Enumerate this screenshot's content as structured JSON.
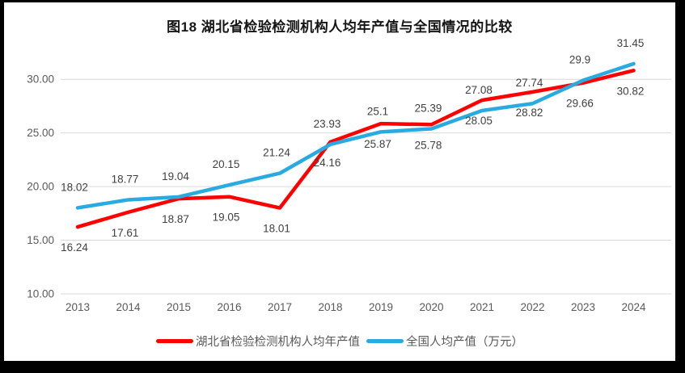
{
  "chart_data": {
    "type": "line",
    "title": "图18  湖北省检验检测机构人均年产值与全国情况的比较",
    "categories": [
      "2013",
      "2014",
      "2015",
      "2016",
      "2017",
      "2018",
      "2019",
      "2020",
      "2021",
      "2022",
      "2023",
      "2024"
    ],
    "series": [
      {
        "name": "湖北省检验检测机构人均年产值",
        "color": "#FF0000",
        "label_position": "below",
        "values": [
          16.24,
          17.61,
          18.87,
          19.05,
          18.01,
          24.16,
          25.87,
          25.78,
          28.05,
          28.82,
          29.66,
          30.82
        ],
        "labels": [
          "16.24",
          "17.61",
          "18.87",
          "19.05",
          "18.01",
          "24.16",
          "25.87",
          "25.78",
          "28.05",
          "28.82",
          "29.66",
          "30.82"
        ]
      },
      {
        "name": "全国人均产值（万元）",
        "color": "#29ABE2",
        "label_position": "above",
        "values": [
          18.02,
          18.77,
          19.04,
          20.15,
          21.24,
          23.93,
          25.1,
          25.39,
          27.08,
          27.74,
          29.9,
          31.45
        ],
        "labels": [
          "18.02",
          "18.77",
          "19.04",
          "20.15",
          "21.24",
          "23.93",
          "25.1",
          "25.39",
          "27.08",
          "27.74",
          "29.9",
          "31.45"
        ]
      }
    ],
    "y_axis": {
      "tick_labels": [
        "10.00",
        "15.00",
        "20.00",
        "25.00",
        "30.00"
      ],
      "min": 10,
      "max": 32.5,
      "step": 5
    },
    "x_axis": {
      "label": ""
    },
    "grid": true,
    "legend_position": "bottom"
  },
  "colors": {
    "hubei_line": "#FF0000",
    "national_line": "#29ABE2",
    "gridline": "#D9D9D9",
    "axis_text": "#595959",
    "data_label": "#404040",
    "legend_text": "#595959",
    "title_text": "#151515",
    "canvas_bg": "#FFFFFF",
    "frame_bg": "#000000"
  }
}
